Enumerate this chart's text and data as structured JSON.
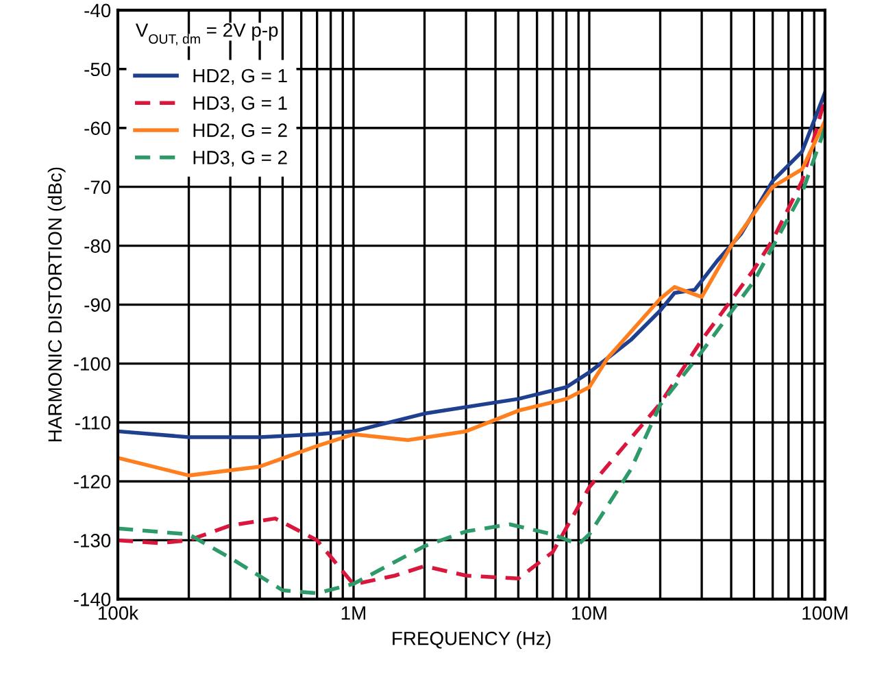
{
  "chart_data": {
    "type": "line",
    "xlabel": "FREQUENCY (Hz)",
    "ylabel": "HARMONIC DISTORTION (dBc)",
    "legend_title": "V$_{OUT, dm}$ = 2V p-p",
    "log": "x",
    "grid": true,
    "legend": "top left",
    "xlim": [
      100000,
      100000000
    ],
    "xticks": [
      {
        "value": 100000,
        "label": "100k"
      },
      {
        "value": 1000000,
        "label": "1M"
      },
      {
        "value": 10000000,
        "label": "10M"
      },
      {
        "value": 100000000,
        "label": "100M"
      }
    ],
    "ylim": [
      -140,
      -40
    ],
    "yticks": [
      -140,
      -130,
      -120,
      -110,
      -100,
      -90,
      -80,
      -70,
      -60,
      -50,
      -40
    ],
    "series": [
      {
        "name": "HD2, G = 1",
        "color": "#1f3f8f",
        "line_style": "solid",
        "x": [
          100000,
          200000,
          400000,
          700000,
          1000000,
          2000000,
          5000000,
          8000000,
          10000000,
          15000000,
          20000000,
          23000000,
          28000000,
          35000000,
          44000000,
          60000000,
          80000000,
          100000000
        ],
        "values": [
          -111.5,
          -112.5,
          -112.5,
          -112,
          -111.5,
          -108.5,
          -106,
          -104,
          -101.5,
          -96,
          -91,
          -88,
          -87.5,
          -82.5,
          -78,
          -69,
          -64,
          -54
        ]
      },
      {
        "name": "HD3, G = 1",
        "color": "#d9163c",
        "line_style": "dashed",
        "x": [
          100000,
          150000,
          200000,
          300000,
          465000,
          700000,
          1000000,
          1500000,
          2000000,
          3000000,
          5000000,
          7000000,
          10000000,
          20000000,
          30000000,
          50000000,
          60000000,
          80000000,
          100000000
        ],
        "values": [
          -130,
          -130.5,
          -130,
          -127.5,
          -126.3,
          -130,
          -137.5,
          -136,
          -134.4,
          -136,
          -136.5,
          -132,
          -121,
          -106.8,
          -96,
          -84,
          -79,
          -69,
          -55
        ]
      },
      {
        "name": "HD2, G = 2",
        "color": "#ff7f1e",
        "line_style": "solid",
        "x": [
          100000,
          200000,
          400000,
          700000,
          1000000,
          1700000,
          3000000,
          5000000,
          8000000,
          10000000,
          12000000,
          20000000,
          23000000,
          30000000,
          40000000,
          60000000,
          80000000,
          100000000
        ],
        "values": [
          -116,
          -119,
          -117.5,
          -114,
          -112,
          -113,
          -111.5,
          -108,
          -106,
          -104,
          -99,
          -89,
          -87,
          -88.7,
          -80,
          -70,
          -67,
          -58.8
        ]
      },
      {
        "name": "HD3, G = 2",
        "color": "#2e9a6a",
        "line_style": "dashed",
        "x": [
          100000,
          200000,
          300000,
          500000,
          700000,
          1000000,
          2000000,
          3000000,
          4600000,
          7000000,
          9000000,
          10000000,
          15000000,
          20000000,
          30000000,
          50000000,
          80000000,
          100000000
        ],
        "values": [
          -128,
          -129,
          -133,
          -138.5,
          -139,
          -137.4,
          -131,
          -128.5,
          -127.3,
          -129,
          -130.7,
          -129,
          -118,
          -107,
          -98,
          -86,
          -71,
          -60
        ]
      }
    ]
  }
}
